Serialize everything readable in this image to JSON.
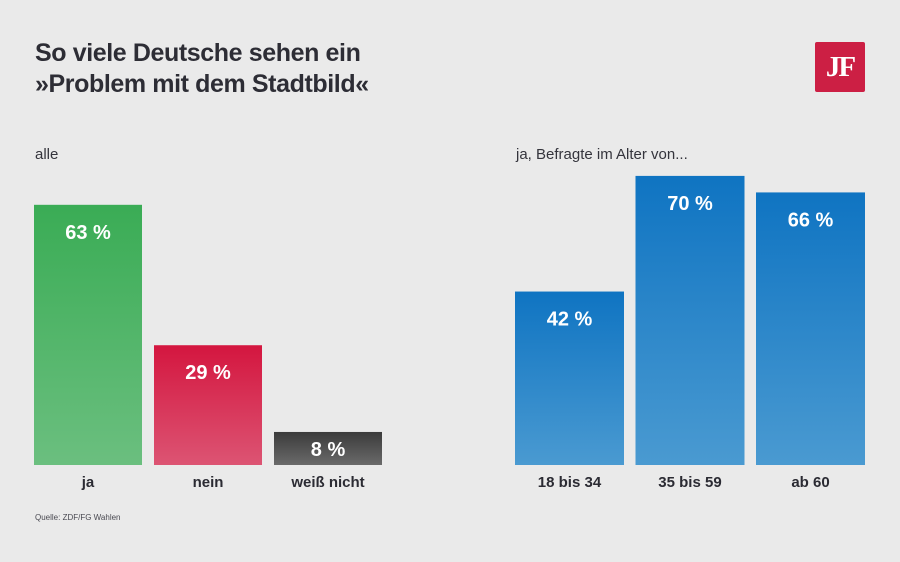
{
  "title_lines": [
    "So viele Deutsche sehen ein",
    "»Problem mit dem Stadtbild«"
  ],
  "logo_text": "JF",
  "brand_color": "#cc1f44",
  "source": "Quelle: ZDF/FG Wahlen",
  "chart_data": [
    {
      "type": "bar",
      "title": "alle",
      "categories": [
        "ja",
        "nein",
        "weiß nicht"
      ],
      "values": [
        63,
        29,
        8
      ],
      "value_labels": [
        "63 %",
        "29 %",
        "8 %"
      ],
      "unit": "%",
      "colors": [
        [
          "#3aac55",
          "#6bbf7f"
        ],
        [
          "#d4163f",
          "#dc5473"
        ],
        [
          "#3b3b3b",
          "#6a6a6a"
        ]
      ],
      "ylim": [
        0,
        100
      ],
      "grid": false,
      "xlabel": "",
      "ylabel": ""
    },
    {
      "type": "bar",
      "title": "ja, Befragte im Alter von...",
      "categories": [
        "18 bis 34",
        "35 bis 59",
        "ab 60"
      ],
      "values": [
        42,
        70,
        66
      ],
      "value_labels": [
        "42 %",
        "70 %",
        "66 %"
      ],
      "unit": "%",
      "colors": [
        [
          "#0f74c2",
          "#4a9ad1"
        ],
        [
          "#0f74c2",
          "#4a9ad1"
        ],
        [
          "#0f74c2",
          "#4a9ad1"
        ]
      ],
      "ylim": [
        0,
        100
      ],
      "grid": false,
      "xlabel": "",
      "ylabel": ""
    }
  ]
}
